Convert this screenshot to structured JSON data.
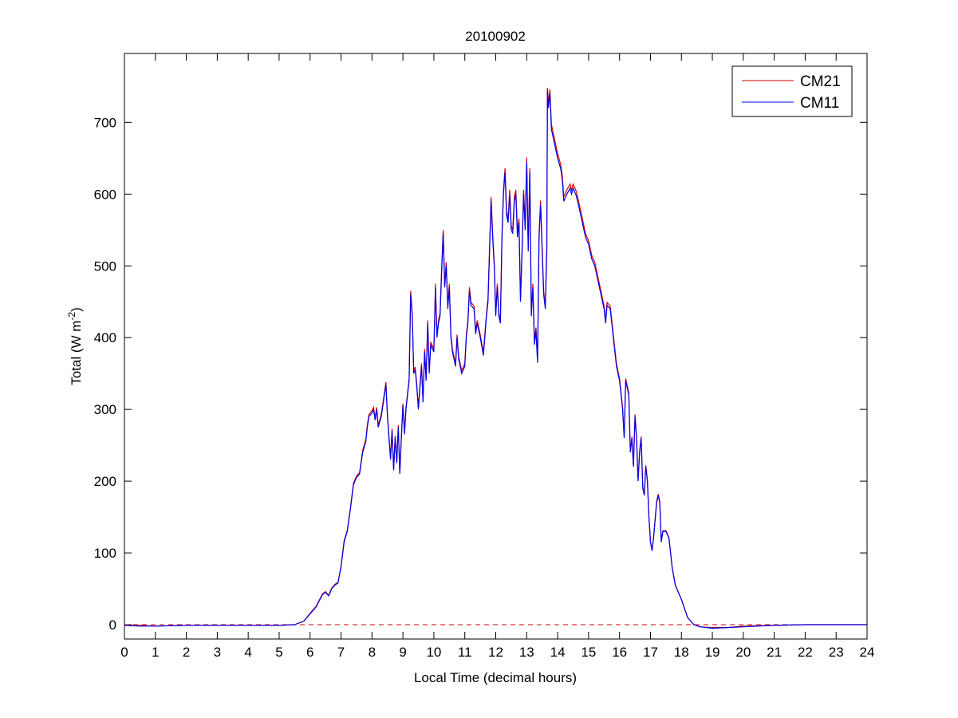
{
  "chart_data": {
    "type": "line",
    "title": "20100902",
    "xlabel": "Local Time (decimal hours)",
    "ylabel": {
      "prefix": "Total (W m",
      "sup": "-2",
      "suffix": ")"
    },
    "xlim": [
      0,
      24
    ],
    "ylim": [
      -20,
      796
    ],
    "xticks": [
      0,
      1,
      2,
      3,
      4,
      5,
      6,
      7,
      8,
      9,
      10,
      11,
      12,
      13,
      14,
      15,
      16,
      17,
      18,
      19,
      20,
      21,
      22,
      23,
      24
    ],
    "yticks": [
      0,
      100,
      200,
      300,
      400,
      500,
      600,
      700
    ],
    "grid": false,
    "legend_position": "top-right",
    "reference_line": {
      "y": 0,
      "style": "dashed",
      "color": "#cc0000"
    },
    "x": [
      0,
      0.5,
      1,
      2,
      3,
      4,
      5,
      5.5,
      5.8,
      6.0,
      6.2,
      6.4,
      6.5,
      6.6,
      6.7,
      6.8,
      6.9,
      7.0,
      7.1,
      7.2,
      7.3,
      7.4,
      7.5,
      7.6,
      7.7,
      7.8,
      7.85,
      7.9,
      8.0,
      8.05,
      8.1,
      8.15,
      8.2,
      8.3,
      8.4,
      8.45,
      8.5,
      8.6,
      8.65,
      8.7,
      8.75,
      8.8,
      8.85,
      8.9,
      8.95,
      9.0,
      9.05,
      9.1,
      9.2,
      9.25,
      9.3,
      9.35,
      9.4,
      9.45,
      9.5,
      9.6,
      9.65,
      9.7,
      9.75,
      9.8,
      9.85,
      9.9,
      10.0,
      10.05,
      10.1,
      10.15,
      10.2,
      10.25,
      10.3,
      10.35,
      10.4,
      10.45,
      10.5,
      10.55,
      10.6,
      10.7,
      10.75,
      10.8,
      10.9,
      11.0,
      11.05,
      11.1,
      11.15,
      11.2,
      11.3,
      11.35,
      11.4,
      11.5,
      11.6,
      11.7,
      11.75,
      11.8,
      11.85,
      11.9,
      11.95,
      12.0,
      12.05,
      12.1,
      12.15,
      12.2,
      12.25,
      12.3,
      12.35,
      12.4,
      12.45,
      12.5,
      12.55,
      12.6,
      12.65,
      12.7,
      12.75,
      12.8,
      12.85,
      12.9,
      12.95,
      13.0,
      13.05,
      13.1,
      13.15,
      13.2,
      13.25,
      13.3,
      13.35,
      13.4,
      13.45,
      13.5,
      13.55,
      13.6,
      13.65,
      13.67,
      13.7,
      13.75,
      13.8,
      13.9,
      14.0,
      14.1,
      14.15,
      14.2,
      14.3,
      14.4,
      14.45,
      14.5,
      14.6,
      14.7,
      14.8,
      14.9,
      15.0,
      15.1,
      15.2,
      15.3,
      15.4,
      15.5,
      15.55,
      15.6,
      15.7,
      15.8,
      15.9,
      16.0,
      16.1,
      16.15,
      16.2,
      16.3,
      16.35,
      16.4,
      16.45,
      16.5,
      16.55,
      16.6,
      16.65,
      16.7,
      16.75,
      16.8,
      16.85,
      16.9,
      16.95,
      17.0,
      17.05,
      17.1,
      17.2,
      17.25,
      17.3,
      17.35,
      17.4,
      17.5,
      17.6,
      17.7,
      17.8,
      18.0,
      18.2,
      18.4,
      18.6,
      19.0,
      19.5,
      20.0,
      21.0,
      22.0,
      24.0
    ],
    "series": [
      {
        "name": "CM21",
        "color": "#dd0000",
        "values": [
          -1,
          -1,
          -2,
          -1,
          -1,
          -1,
          -1,
          0,
          5,
          16,
          26,
          43,
          46,
          41,
          51,
          56,
          59,
          81,
          117,
          131,
          162,
          197,
          207,
          212,
          243,
          258,
          278,
          293,
          298,
          303,
          288,
          303,
          278,
          293,
          323,
          338,
          293,
          232,
          273,
          217,
          263,
          227,
          278,
          212,
          263,
          308,
          268,
          303,
          343,
          465,
          434,
          354,
          359,
          333,
          303,
          364,
          313,
          384,
          343,
          424,
          354,
          394,
          384,
          475,
          404,
          424,
          434,
          495,
          550,
          475,
          505,
          444,
          475,
          404,
          384,
          364,
          404,
          374,
          354,
          364,
          404,
          424,
          470,
          449,
          444,
          409,
          424,
          404,
          379,
          434,
          455,
          525,
          596,
          545,
          505,
          434,
          475,
          434,
          424,
          545,
          606,
          636,
          576,
          566,
          606,
          556,
          550,
          596,
          606,
          545,
          566,
          455,
          525,
          606,
          556,
          651,
          525,
          636,
          434,
          475,
          394,
          414,
          369,
          545,
          591,
          525,
          465,
          444,
          525,
          748,
          727,
          746,
          697,
          677,
          656,
          641,
          626,
          596,
          606,
          614,
          606,
          614,
          604,
          586,
          566,
          545,
          535,
          515,
          505,
          485,
          465,
          444,
          424,
          449,
          444,
          404,
          364,
          343,
          303,
          262,
          343,
          323,
          242,
          262,
          222,
          293,
          262,
          202,
          242,
          262,
          192,
          182,
          222,
          202,
          151,
          116,
          104,
          121,
          172,
          182,
          172,
          116,
          131,
          131,
          121,
          81,
          56,
          35,
          10,
          0,
          -3,
          -4,
          -4,
          -2,
          -1,
          0,
          0
        ]
      },
      {
        "name": "CM11",
        "color": "#0000ee",
        "values": [
          -1,
          -2,
          -2,
          -1,
          -1,
          -1,
          -1,
          0,
          5,
          15,
          25,
          42,
          45,
          40,
          50,
          55,
          58,
          80,
          115,
          130,
          160,
          195,
          205,
          210,
          240,
          255,
          275,
          290,
          295,
          300,
          285,
          300,
          275,
          290,
          320,
          335,
          290,
          230,
          270,
          215,
          260,
          225,
          275,
          210,
          260,
          305,
          265,
          300,
          340,
          460,
          430,
          350,
          355,
          330,
          300,
          360,
          310,
          380,
          340,
          420,
          350,
          390,
          380,
          470,
          400,
          420,
          430,
          490,
          545,
          470,
          500,
          440,
          470,
          400,
          380,
          360,
          400,
          370,
          350,
          360,
          400,
          420,
          465,
          445,
          440,
          405,
          420,
          400,
          375,
          430,
          450,
          520,
          590,
          540,
          500,
          430,
          470,
          430,
          420,
          540,
          600,
          630,
          570,
          560,
          600,
          550,
          545,
          590,
          600,
          540,
          560,
          450,
          520,
          600,
          550,
          645,
          520,
          630,
          430,
          470,
          390,
          410,
          365,
          540,
          585,
          520,
          460,
          440,
          520,
          745,
          720,
          740,
          690,
          670,
          650,
          635,
          620,
          590,
          600,
          608,
          600,
          608,
          598,
          580,
          560,
          540,
          530,
          510,
          500,
          480,
          460,
          440,
          420,
          445,
          440,
          400,
          360,
          340,
          300,
          260,
          340,
          320,
          240,
          260,
          220,
          290,
          260,
          200,
          240,
          260,
          190,
          180,
          220,
          200,
          150,
          115,
          103,
          120,
          170,
          180,
          170,
          115,
          130,
          130,
          120,
          80,
          55,
          35,
          10,
          0,
          -3,
          -5,
          -4,
          -3,
          -1,
          0,
          0
        ]
      }
    ]
  }
}
